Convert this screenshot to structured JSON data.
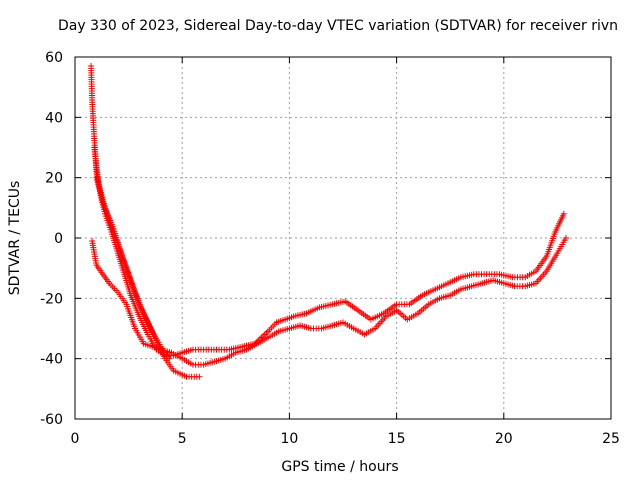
{
  "chart_data": {
    "type": "scatter",
    "title": "Day 330 of 2023, Sidereal Day-to-day VTEC variation (SDTVAR) for receiver rivn",
    "xlabel": "GPS time / hours",
    "ylabel": "SDTVAR / TECUs",
    "xlim": [
      0,
      25
    ],
    "ylim": [
      -60,
      60
    ],
    "xticks": [
      0,
      5,
      10,
      15,
      20,
      25
    ],
    "yticks": [
      -60,
      -40,
      -20,
      0,
      20,
      40,
      60
    ],
    "xtick_labels": [
      "0",
      "5",
      "10",
      "15",
      "20",
      "25"
    ],
    "ytick_labels": [
      "-60",
      "-40",
      "-20",
      "0",
      "20",
      "40",
      "60"
    ],
    "grid": true,
    "marker": "+",
    "series": [
      {
        "name": "SDTVAR",
        "color": "#ff0000",
        "x": [
          0.75,
          0.8,
          0.9,
          1.0,
          1.2,
          1.4,
          1.7,
          2.0,
          2.3,
          2.6,
          3.0,
          3.4,
          3.8,
          4.2,
          4.6,
          5.0,
          5.5,
          6.0,
          6.6,
          7.2,
          7.8,
          8.4,
          9.0,
          9.4,
          9.8,
          10.2,
          10.8,
          11.4,
          12.0,
          12.6,
          13.2,
          13.8,
          14.4,
          15.0,
          15.6,
          16.2,
          16.8,
          17.4,
          18.0,
          18.6,
          19.2,
          19.8,
          20.4,
          21.0,
          21.5,
          22.0,
          22.4,
          22.8
        ],
        "y": [
          57,
          45,
          33,
          22,
          14,
          8,
          2,
          -5,
          -12,
          -19,
          -26,
          -32,
          -37,
          -39,
          -39,
          -38,
          -37,
          -37,
          -37,
          -37,
          -36,
          -35,
          -31,
          -28,
          -27,
          -26,
          -25,
          -23,
          -22,
          -21,
          -24,
          -27,
          -25,
          -22,
          -22,
          -19,
          -17,
          -15,
          -13,
          -12,
          -12,
          -12,
          -13,
          -13,
          -11,
          -6,
          2,
          8
        ]
      },
      {
        "name": "SDTVAR",
        "color": "#ff0000",
        "x": [
          0.8,
          1.0,
          1.3,
          1.6,
          2.0,
          2.4,
          2.8,
          3.2,
          3.6,
          4.0,
          4.5,
          5.0,
          5.5,
          6.0,
          6.5,
          7.0,
          7.5,
          8.0,
          9.0,
          9.5,
          10.0,
          10.5,
          11.0,
          11.5,
          12.0,
          12.5,
          13.0,
          13.5,
          14.0,
          14.5,
          15.0,
          15.5,
          16.0,
          16.5,
          17.0,
          17.5,
          18.0,
          18.5,
          19.0,
          19.5,
          20.0,
          20.5,
          21.0,
          21.5,
          22.0,
          22.5,
          22.9
        ],
        "y": [
          -1,
          -9,
          -12,
          -15,
          -18,
          -22,
          -30,
          -35,
          -36,
          -37,
          -38,
          -40,
          -42,
          -42,
          -41,
          -40,
          -38,
          -37,
          -33,
          -31,
          -30,
          -29,
          -30,
          -30,
          -29,
          -28,
          -30,
          -32,
          -30,
          -26,
          -24,
          -27,
          -25,
          -22,
          -20,
          -19,
          -17,
          -16,
          -15,
          -14,
          -15,
          -16,
          -16,
          -15,
          -11,
          -5,
          0
        ]
      },
      {
        "name": "SDTVAR",
        "color": "#ff0000",
        "x": [
          0.9,
          1.1,
          1.4,
          1.8,
          2.2,
          2.6,
          3.0,
          3.4,
          3.8,
          4.2,
          4.6,
          5.2,
          5.8
        ],
        "y": [
          30,
          18,
          10,
          3,
          -6,
          -14,
          -22,
          -28,
          -34,
          -40,
          -44,
          -46,
          -46
        ]
      },
      {
        "name": "SDTVAR",
        "color": "#ff0000",
        "x": [
          1.0,
          1.3,
          1.6,
          2.0,
          2.4,
          2.8,
          3.2,
          3.6,
          4.0,
          4.4
        ],
        "y": [
          20,
          12,
          6,
          -2,
          -10,
          -18,
          -25,
          -31,
          -36,
          -40
        ]
      }
    ]
  }
}
